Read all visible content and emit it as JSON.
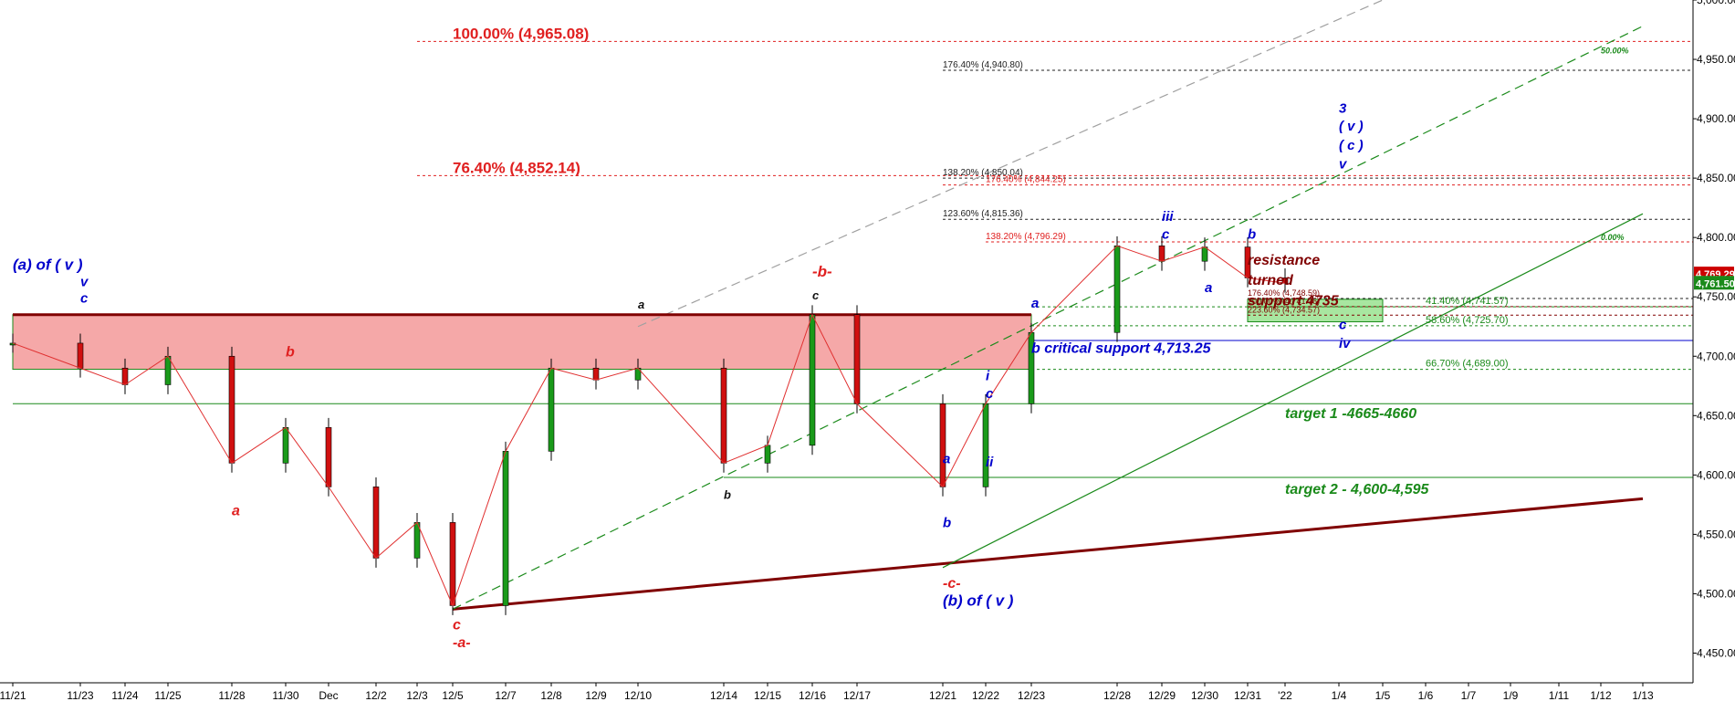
{
  "chart_data": {
    "type": "line",
    "title": "",
    "xlabel": "",
    "ylabel": "",
    "ylim": [
      4425,
      5000
    ],
    "y_ticks": [
      4450,
      4500,
      4550,
      4600,
      4650,
      4700,
      4750,
      4800,
      4850,
      4900,
      4950,
      5000
    ],
    "y_tick_labels": [
      "4,450.00",
      "4,500.00",
      "4,550.00",
      "4,600.00",
      "4,650.00",
      "4,700.00",
      "4,750.00",
      "4,800.00",
      "4,850.00",
      "4,900.00",
      "4,950.00",
      "5,000.00"
    ],
    "grid": false,
    "x_tick_labels": [
      "11/21",
      "11/23",
      "11/24",
      "11/25",
      "11/28",
      "11/30",
      "Dec",
      "12/2",
      "12/3",
      "12/5",
      "12/7",
      "12/8",
      "12/9",
      "12/10",
      "12/14",
      "12/15",
      "12/16",
      "12/17",
      "12/21",
      "12/22",
      "12/23",
      "12/28",
      "12/29",
      "12/30",
      "12/31",
      "'22",
      "1/4",
      "1/5",
      "1/6",
      "1/7",
      "1/9",
      "1/11",
      "1/12",
      "1/13"
    ],
    "price_labels": [
      {
        "text": "4,769.29",
        "value": 4769.29,
        "color": "#cc0000"
      },
      {
        "text": "4,761.50",
        "value": 4761.5,
        "color": "#1a8a1a"
      }
    ],
    "series": [
      {
        "label_only": true,
        "color": "#111111",
        "points": [
          {
            "x": "11/21",
            "y": 4711
          },
          {
            "x": "11/23",
            "y": 4690
          },
          {
            "x": "11/24",
            "y": 4676
          },
          {
            "x": "11/25",
            "y": 4700
          },
          {
            "x": "11/28",
            "y": 4610
          },
          {
            "x": "11/30",
            "y": 4640
          },
          {
            "x": "Dec",
            "y": 4590
          },
          {
            "x": "12/2",
            "y": 4530
          },
          {
            "x": "12/3",
            "y": 4560
          },
          {
            "x": "12/5",
            "y": 4490
          },
          {
            "x": "12/7",
            "y": 4620
          },
          {
            "x": "12/8",
            "y": 4690
          },
          {
            "x": "12/9",
            "y": 4680
          },
          {
            "x": "12/10",
            "y": 4690
          },
          {
            "x": "12/14",
            "y": 4610
          },
          {
            "x": "12/15",
            "y": 4625
          },
          {
            "x": "12/16",
            "y": 4735
          },
          {
            "x": "12/17",
            "y": 4660
          },
          {
            "x": "12/21",
            "y": 4590
          },
          {
            "x": "12/22",
            "y": 4660
          },
          {
            "x": "12/23",
            "y": 4720
          },
          {
            "x": "12/28",
            "y": 4793
          },
          {
            "x": "12/29",
            "y": 4780
          },
          {
            "x": "12/30",
            "y": 4792
          },
          {
            "x": "12/31",
            "y": 4766
          },
          {
            "x": "'22",
            "y": 4761.5
          }
        ]
      }
    ],
    "hlines": [
      {
        "value": 4965.08,
        "color": "#e02020",
        "dash": "3,3",
        "x_start": "12/3",
        "label": "100.00% (4,965.08)",
        "label_color": "#e02020",
        "label_size": 17,
        "label_bold": true,
        "label_x": "12/5"
      },
      {
        "value": 4940.8,
        "color": "#222222",
        "dash": "3,3",
        "x_start": "12/21",
        "label": "176.40% (4,940.80)",
        "label_color": "#222222",
        "label_size": 10,
        "label_bold": false,
        "label_x": "12/21"
      },
      {
        "value": 4852.14,
        "color": "#e02020",
        "dash": "3,3",
        "x_start": "12/3",
        "label": "76.40% (4,852.14)",
        "label_color": "#e02020",
        "label_size": 17,
        "label_bold": true,
        "label_x": "12/5"
      },
      {
        "value": 4850.04,
        "color": "#222222",
        "dash": "3,3",
        "x_start": "12/21",
        "label": "138.20% (4,850.04)",
        "label_color": "#222222",
        "label_size": 10,
        "label_bold": false,
        "label_x": "12/21"
      },
      {
        "value": 4844.25,
        "color": "#e02020",
        "dash": "3,3",
        "x_start": "12/21",
        "label": "176.40% (4,844.25)",
        "label_color": "#e02020",
        "label_size": 10,
        "label_bold": false,
        "label_x": "12/22"
      },
      {
        "value": 4815.36,
        "color": "#222222",
        "dash": "3,3",
        "x_start": "12/21",
        "label": "123.60% (4,815.36)",
        "label_color": "#222222",
        "label_size": 10,
        "label_bold": false,
        "label_x": "12/21"
      },
      {
        "value": 4796.29,
        "color": "#e02020",
        "dash": "3,3",
        "x_start": "12/22",
        "label": "138.20% (4,796.29)",
        "label_color": "#e02020",
        "label_size": 10,
        "label_bold": false,
        "label_x": "12/22"
      },
      {
        "value": 4748.59,
        "color": "#222222",
        "dash": "3,3",
        "x_start": "12/31",
        "label": "176.40% (4,748.59)",
        "label_color": "#800000",
        "label_size": 9,
        "label_bold": false,
        "label_x": "12/31"
      },
      {
        "value": 4741.57,
        "color": "#1a8a1a",
        "dash": "3,3",
        "x_start": "12/23",
        "label": "41.40% (4,741.57)",
        "label_color": "#1a8a1a",
        "label_size": 11,
        "label_bold": false,
        "label_x": "1/6"
      },
      {
        "value": 4741.76,
        "color": "#800000",
        "dash": "3,3",
        "x_start": "12/31",
        "label": "200.00% (4,741.76)",
        "label_color": "#800000",
        "label_size": 9,
        "label_bold": false,
        "label_x": "12/31"
      },
      {
        "value": 4734.57,
        "color": "#800000",
        "dash": "3,3",
        "x_start": "12/31",
        "label": "223.60% (4,734.57)",
        "label_color": "#800000",
        "label_size": 9,
        "label_bold": false,
        "label_x": "12/31"
      },
      {
        "value": 4725.7,
        "color": "#1a8a1a",
        "dash": "3,3",
        "x_start": "12/23",
        "label": "58.60% (4,725.70)",
        "label_color": "#1a8a1a",
        "label_size": 11,
        "label_bold": false,
        "label_x": "1/6"
      },
      {
        "value": 4713.25,
        "color": "#0000cc",
        "dash": "",
        "x_start": "12/23",
        "label": "",
        "label_color": "#0000cc",
        "label_size": 11,
        "label_bold": false,
        "label_x": "12/23"
      },
      {
        "value": 4689.0,
        "color": "#1a8a1a",
        "dash": "3,3",
        "x_start": "12/23",
        "label": "66.70% (4,689.00)",
        "label_color": "#1a8a1a",
        "label_size": 11,
        "label_bold": false,
        "label_x": "1/6"
      },
      {
        "value": 4660,
        "color": "#1a8a1a",
        "dash": "",
        "x_start": "11/21",
        "label": "",
        "label_color": "#1a8a1a",
        "label_size": 11,
        "label_bold": false,
        "label_x": "11/21"
      },
      {
        "value": 4598,
        "color": "#1a8a1a",
        "dash": "",
        "x_start": "12/14",
        "label": "",
        "label_color": "#1a8a1a",
        "label_size": 11,
        "label_bold": false,
        "label_x": "12/14"
      }
    ],
    "zones": [
      {
        "y_low": 4689,
        "y_high": 4735,
        "x_start": "11/21",
        "x_end": "12/23",
        "fill": "#f5a8a8",
        "stroke": "#1a8a1a"
      },
      {
        "y_low": 4729,
        "y_high": 4748,
        "x_start": "12/31",
        "x_end": "1/5",
        "fill": "#a8e6a0",
        "stroke": "#1a8a1a"
      }
    ],
    "annotations": [
      {
        "text": "(a) of ( v )",
        "x": "11/21",
        "y": 4773,
        "color": "#0000cc",
        "size": 17
      },
      {
        "text": "v",
        "x": "11/23",
        "y": 4759,
        "color": "#0000cc",
        "size": 15
      },
      {
        "text": "c",
        "x": "11/23",
        "y": 4745,
        "color": "#0000cc",
        "size": 15
      },
      {
        "text": "b",
        "x": "11/30",
        "y": 4700,
        "color": "#e02020",
        "size": 16
      },
      {
        "text": "a",
        "x": "11/28",
        "y": 4566,
        "color": "#e02020",
        "size": 16
      },
      {
        "text": "c",
        "x": "12/5",
        "y": 4470,
        "color": "#e02020",
        "size": 16
      },
      {
        "text": "-a-",
        "x": "12/5",
        "y": 4455,
        "color": "#e02020",
        "size": 16
      },
      {
        "text": "a",
        "x": "12/10",
        "y": 4740,
        "color": "#111111",
        "size": 13
      },
      {
        "text": "b",
        "x": "12/14",
        "y": 4580,
        "color": "#111111",
        "size": 13
      },
      {
        "text": "-b-",
        "x": "12/16",
        "y": 4767,
        "color": "#e02020",
        "size": 17
      },
      {
        "text": "c",
        "x": "12/16",
        "y": 4748,
        "color": "#111111",
        "size": 13
      },
      {
        "text": "-c-",
        "x": "12/21",
        "y": 4505,
        "color": "#e02020",
        "size": 16
      },
      {
        "text": "(b) of ( v )",
        "x": "12/21",
        "y": 4490,
        "color": "#0000cc",
        "size": 17
      },
      {
        "text": "a",
        "x": "12/21",
        "y": 4610,
        "color": "#0000cc",
        "size": 15
      },
      {
        "text": "b",
        "x": "12/21",
        "y": 4556,
        "color": "#0000cc",
        "size": 15
      },
      {
        "text": "i",
        "x": "12/22",
        "y": 4680,
        "color": "#0000cc",
        "size": 15
      },
      {
        "text": "c",
        "x": "12/22",
        "y": 4665,
        "color": "#0000cc",
        "size": 15
      },
      {
        "text": "ii",
        "x": "12/22",
        "y": 4607,
        "color": "#0000cc",
        "size": 15
      },
      {
        "text": "a",
        "x": "12/23",
        "y": 4741,
        "color": "#0000cc",
        "size": 15
      },
      {
        "text": "iii",
        "x": "12/29",
        "y": 4814,
        "color": "#0000cc",
        "size": 15
      },
      {
        "text": "c",
        "x": "12/29",
        "y": 4799,
        "color": "#0000cc",
        "size": 15
      },
      {
        "text": "a",
        "x": "12/30",
        "y": 4754,
        "color": "#0000cc",
        "size": 15
      },
      {
        "text": "b",
        "x": "12/31",
        "y": 4799,
        "color": "#0000cc",
        "size": 15
      },
      {
        "text": "3",
        "x": "1/4",
        "y": 4905,
        "color": "#0000cc",
        "size": 15
      },
      {
        "text": "( v )",
        "x": "1/4",
        "y": 4890,
        "color": "#0000cc",
        "size": 15
      },
      {
        "text": "( c )",
        "x": "1/4",
        "y": 4874,
        "color": "#0000cc",
        "size": 15
      },
      {
        "text": "v",
        "x": "1/4",
        "y": 4858,
        "color": "#0000cc",
        "size": 15
      },
      {
        "text": "c",
        "x": "1/4",
        "y": 4723,
        "color": "#0000cc",
        "size": 15
      },
      {
        "text": "iv",
        "x": "1/4",
        "y": 4707,
        "color": "#0000cc",
        "size": 15
      },
      {
        "text": "b critical support 4,713.25",
        "x": "12/23",
        "y": 4703,
        "color": "#0000cc",
        "size": 16
      },
      {
        "text": "resistance",
        "x": "12/31",
        "y": 4777,
        "color": "#800000",
        "size": 16
      },
      {
        "text": "turned",
        "x": "12/31",
        "y": 4760,
        "color": "#800000",
        "size": 16
      },
      {
        "text": "support 4735",
        "x": "12/31",
        "y": 4743,
        "color": "#800000",
        "size": 16
      },
      {
        "text": "target 1 -4665-4660",
        "x": "'22",
        "y": 4648,
        "color": "#1a8a1a",
        "size": 16
      },
      {
        "text": "target 2 - 4,600-4,595",
        "x": "'22",
        "y": 4584,
        "color": "#1a8a1a",
        "size": 16
      },
      {
        "text": "50.00%",
        "x": "1/12",
        "y": 4955,
        "color": "#1a8a1a",
        "size": 9
      },
      {
        "text": "0.00%",
        "x": "1/12",
        "y": 4798,
        "color": "#1a8a1a",
        "size": 9
      }
    ],
    "trendlines": [
      {
        "x1": "12/5",
        "y1": 4487,
        "x2": "1/13",
        "y2": 4580,
        "color": "#800000",
        "width": 3,
        "dash": ""
      },
      {
        "x1": "12/10",
        "y1": 4725,
        "x2": "1/5",
        "y2": 5000,
        "color": "#a0a0a0",
        "width": 1.2,
        "dash": "10,6"
      },
      {
        "x1": "12/5",
        "y1": 4487,
        "x2": "1/13",
        "y2": 4978,
        "color": "#1a8a1a",
        "width": 1.2,
        "dash": "10,6"
      },
      {
        "x1": "12/21",
        "y1": 4522,
        "x2": "1/13",
        "y2": 4820,
        "color": "#1a8a1a",
        "width": 1.2,
        "dash": ""
      },
      {
        "x1": "11/21",
        "y1": 4735,
        "x2": "12/23",
        "y2": 4735,
        "color": "#800000",
        "width": 3,
        "dash": ""
      }
    ]
  }
}
